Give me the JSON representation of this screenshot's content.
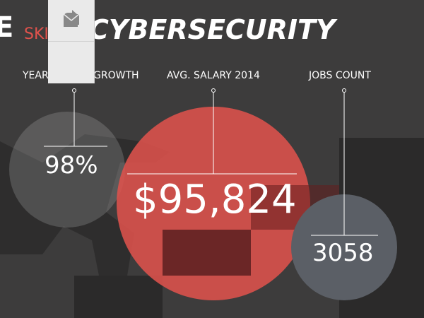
{
  "header": {
    "edge_letter": "E",
    "prefix": "SKI",
    "title": "CYBERSECURITY"
  },
  "stats": [
    {
      "label_parts": [
        "YEAR",
        "GROWTH"
      ],
      "value": "98%"
    },
    {
      "label": "AVG. SALARY 2014",
      "value": "$95,824"
    },
    {
      "label": "JOBS COUNT",
      "value": "3058"
    }
  ]
}
